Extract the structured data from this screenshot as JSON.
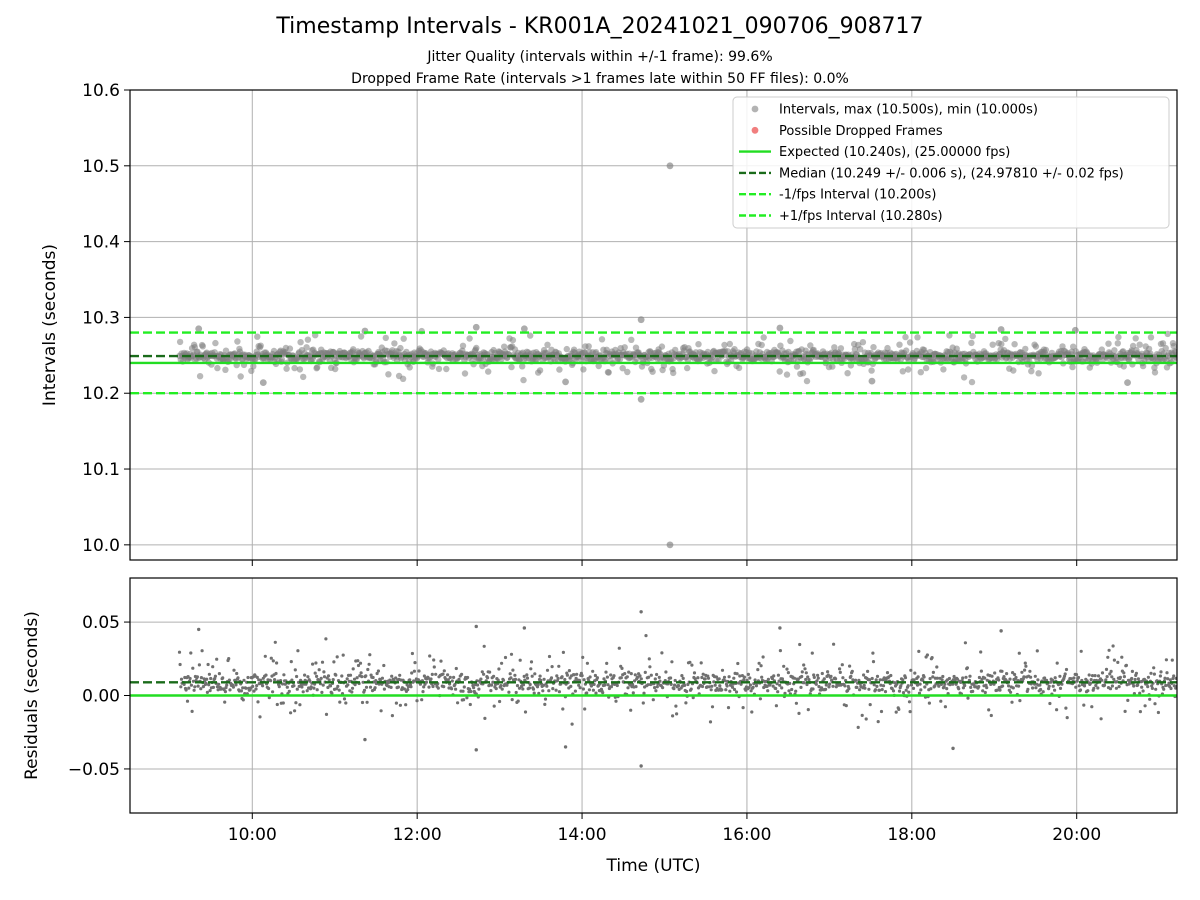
{
  "chart_data": [
    {
      "type": "scatter",
      "title": "Timestamp Intervals - KR001A_20241021_090706_908717",
      "subtitle_lines": [
        "Jitter Quality (intervals within +/-1 frame): 99.6%",
        "Dropped Frame Rate (intervals >1 frames late within 50 FF files): 0.0%"
      ],
      "xlabel": "",
      "ylabel": "Intervals (seconds)",
      "xlim": [
        "08:31",
        "21:13"
      ],
      "ylim": [
        9.98,
        10.6
      ],
      "yticks": [
        "10.0",
        "10.1",
        "10.2",
        "10.3",
        "10.4",
        "10.5",
        "10.6"
      ],
      "grid": true,
      "legend_position": "top-right",
      "series": [
        {
          "name": "Intervals, max (10.500s), min (10.000s)",
          "kind": "scatter",
          "color": "#808080",
          "x_range": [
            "09:07",
            "21:13"
          ],
          "typical_range": [
            10.2,
            10.28
          ],
          "points": [
            {
              "x": "15:04",
              "y": 10.5
            },
            {
              "x": "15:04",
              "y": 10.0
            },
            {
              "x": "14:43",
              "y": 10.297
            },
            {
              "x": "14:43",
              "y": 10.192
            },
            {
              "x": "12:43",
              "y": 10.287
            },
            {
              "x": "13:18",
              "y": 10.285
            },
            {
              "x": "09:21",
              "y": 10.285
            },
            {
              "x": "16:24",
              "y": 10.286
            },
            {
              "x": "19:05",
              "y": 10.284
            },
            {
              "x": "19:59",
              "y": 10.283
            },
            {
              "x": "11:22",
              "y": 10.282
            },
            {
              "x": "10:08",
              "y": 10.214
            },
            {
              "x": "13:48",
              "y": 10.215
            },
            {
              "x": "17:31",
              "y": 10.216
            },
            {
              "x": "20:37",
              "y": 10.214
            }
          ]
        },
        {
          "name": "Possible Dropped Frames",
          "kind": "scatter",
          "color": "#f07070",
          "points": []
        },
        {
          "name": "Expected (10.240s), (25.00000 fps)",
          "kind": "hline",
          "value": 10.24,
          "color": "#22dd22",
          "style": "solid"
        },
        {
          "name": "Median (10.249 +/- 0.006 s), (24.97810 +/- 0.02 fps)",
          "kind": "hline",
          "value": 10.249,
          "color": "#1a6b1a",
          "style": "dashed"
        },
        {
          "name": "-1/fps Interval (10.200s)",
          "kind": "hline",
          "value": 10.2,
          "color": "#22ee22",
          "style": "dashed"
        },
        {
          "name": "+1/fps Interval (10.280s)",
          "kind": "hline",
          "value": 10.28,
          "color": "#22ee22",
          "style": "dashed"
        }
      ]
    },
    {
      "type": "scatter",
      "title": "",
      "xlabel": "Time (UTC)",
      "ylabel": "Residuals (seconds)",
      "xlim": [
        "08:31",
        "21:13"
      ],
      "xticks": [
        "10:00",
        "12:00",
        "14:00",
        "16:00",
        "18:00",
        "20:00"
      ],
      "ylim": [
        -0.08,
        0.08
      ],
      "yticks": [
        "−0.05",
        "0.00",
        "0.05"
      ],
      "ytick_values": [
        -0.05,
        0.0,
        0.05
      ],
      "grid": true,
      "series": [
        {
          "name": "",
          "kind": "scatter",
          "color": "#707070",
          "x_range": [
            "09:07",
            "21:13"
          ],
          "typical_range": [
            -0.03,
            0.045
          ],
          "points": [
            {
              "x": "14:43",
              "y": 0.057
            },
            {
              "x": "14:43",
              "y": -0.048
            },
            {
              "x": "12:43",
              "y": 0.047
            },
            {
              "x": "09:21",
              "y": 0.045
            },
            {
              "x": "16:24",
              "y": 0.046
            },
            {
              "x": "13:18",
              "y": 0.046
            },
            {
              "x": "19:05",
              "y": 0.044
            },
            {
              "x": "11:22",
              "y": -0.03
            },
            {
              "x": "12:43",
              "y": -0.037
            },
            {
              "x": "13:48",
              "y": -0.035
            },
            {
              "x": "18:30",
              "y": -0.036
            }
          ]
        },
        {
          "name": "",
          "kind": "hline",
          "value": 0.0,
          "color": "#22dd22",
          "style": "solid"
        },
        {
          "name": "",
          "kind": "hline",
          "value": 0.009,
          "color": "#1a6b1a",
          "style": "dashed"
        }
      ]
    }
  ]
}
